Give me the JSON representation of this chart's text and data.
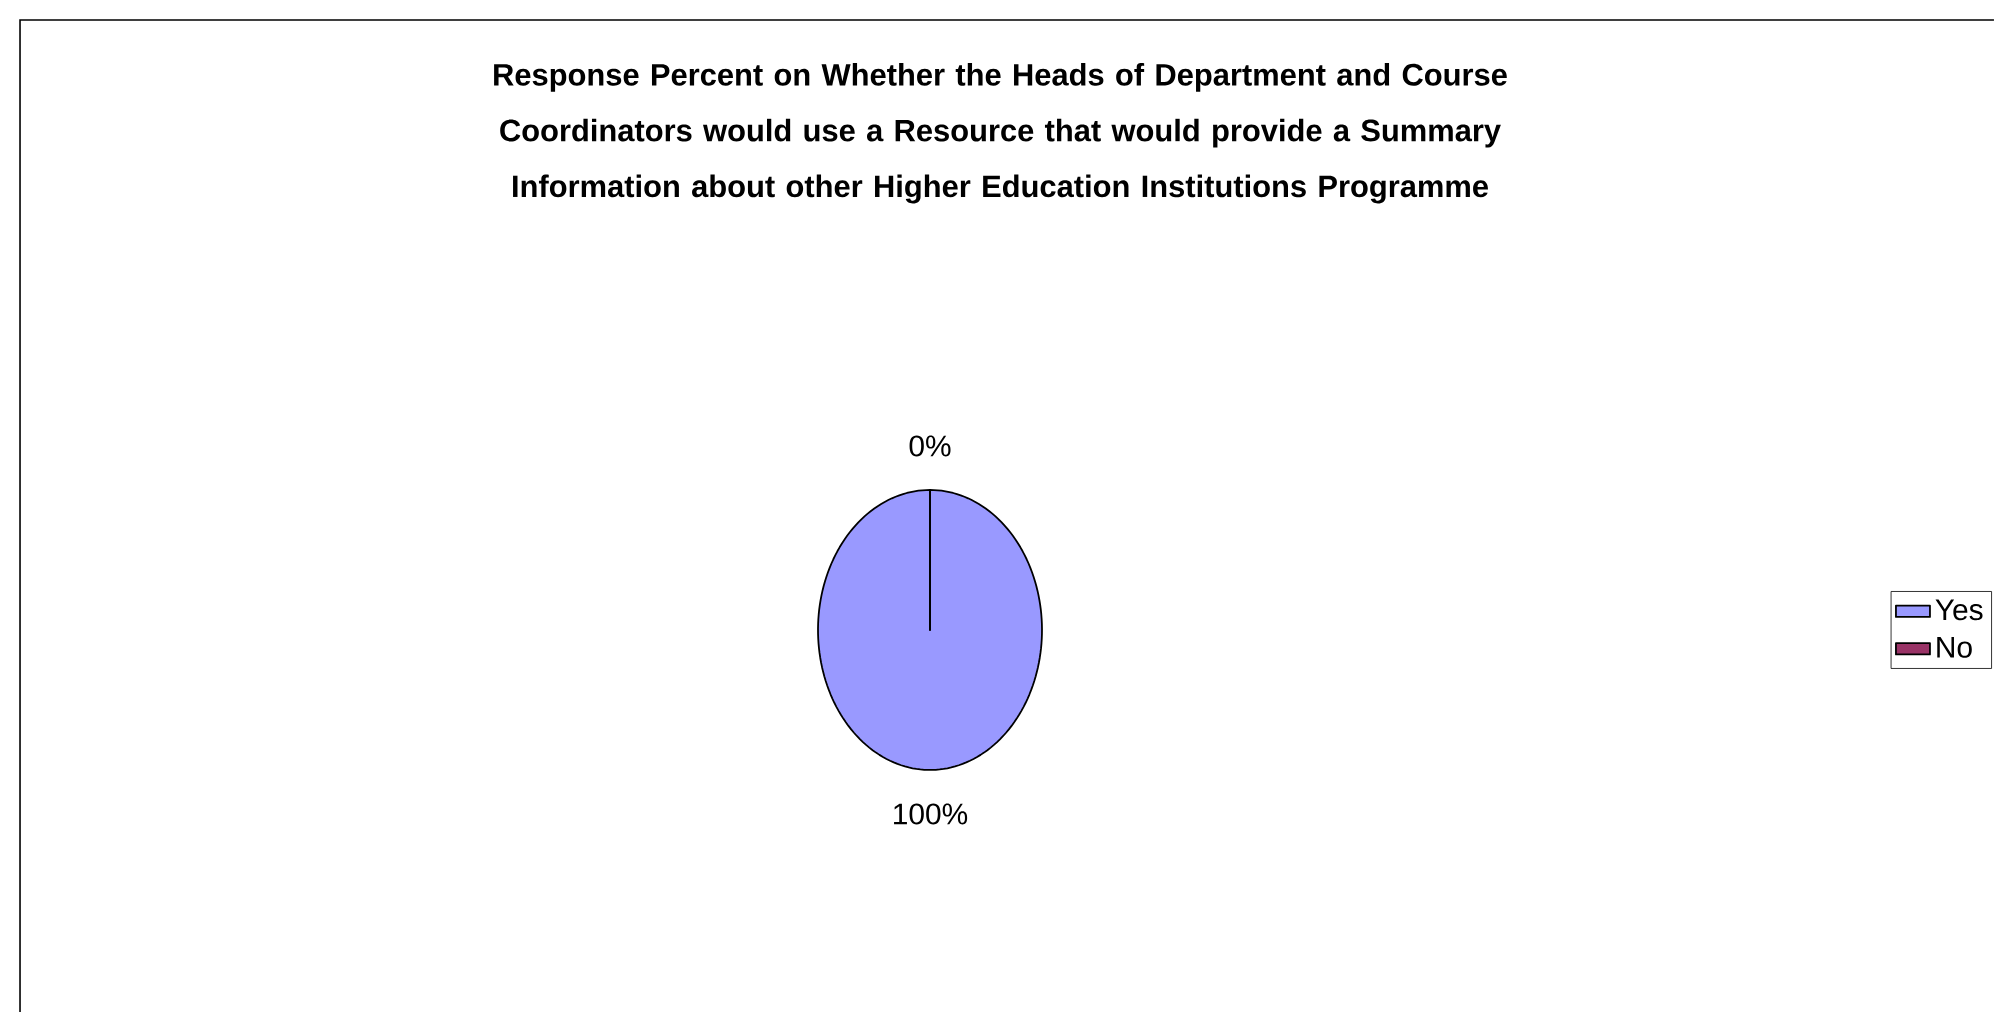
{
  "chart_data": {
    "type": "pie",
    "title": "Response Percent on Whether the Heads of Department and Course Coordinators would use a Resource that would provide a Summary Information about other Higher Education Institutions Programme",
    "categories": [
      "Yes",
      "No"
    ],
    "values": [
      100,
      0
    ],
    "colors": [
      "#9999ff",
      "#993366"
    ],
    "value_labels": [
      "100%",
      "0%"
    ],
    "legend": "right"
  }
}
